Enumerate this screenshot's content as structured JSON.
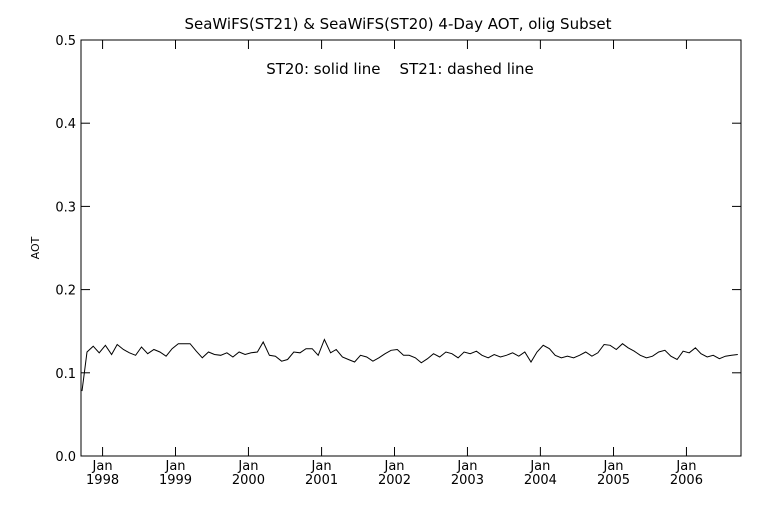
{
  "chart_data": {
    "type": "line",
    "title": "SeaWiFS(ST21) & SeaWiFS(ST20) 4-Day AOT, olig Subset",
    "annotation": "ST20: solid line    ST21: dashed line",
    "xlabel": "",
    "ylabel": "AOT",
    "xlim": [
      "1997-09-15",
      "2006-10-01"
    ],
    "ylim": [
      0.0,
      0.5
    ],
    "y_ticks": [
      "0.0",
      "0.1",
      "0.2",
      "0.3",
      "0.4",
      "0.5"
    ],
    "x_ticks": [
      {
        "month": "Jan",
        "year": "1998",
        "date": "1998-01-01"
      },
      {
        "month": "Jan",
        "year": "1999",
        "date": "1999-01-01"
      },
      {
        "month": "Jan",
        "year": "2000",
        "date": "2000-01-01"
      },
      {
        "month": "Jan",
        "year": "2001",
        "date": "2001-01-01"
      },
      {
        "month": "Jan",
        "year": "2002",
        "date": "2002-01-01"
      },
      {
        "month": "Jan",
        "year": "2003",
        "date": "2003-01-01"
      },
      {
        "month": "Jan",
        "year": "2004",
        "date": "2004-01-01"
      },
      {
        "month": "Jan",
        "year": "2005",
        "date": "2005-01-01"
      },
      {
        "month": "Jan",
        "year": "2006",
        "date": "2006-01-01"
      }
    ],
    "grid": false,
    "series": [
      {
        "name": "ST20",
        "style": "solid",
        "color": "#000000",
        "x": [
          "1997-09-20",
          "1997-10-15",
          "1997-11-15",
          "1997-12-15",
          "1998-01-15",
          "1998-02-15",
          "1998-03-15",
          "1998-04-15",
          "1998-05-15",
          "1998-06-15",
          "1998-07-15",
          "1998-08-15",
          "1998-09-15",
          "1998-10-15",
          "1998-11-15",
          "1998-12-15",
          "1999-01-15",
          "1999-02-15",
          "1999-03-15",
          "1999-04-15",
          "1999-05-15",
          "1999-06-15",
          "1999-07-15",
          "1999-08-15",
          "1999-09-15",
          "1999-10-15",
          "1999-11-15",
          "1999-12-15",
          "2000-01-15",
          "2000-02-15",
          "2000-03-15",
          "2000-04-15",
          "2000-05-15",
          "2000-06-15",
          "2000-07-15",
          "2000-08-15",
          "2000-09-15",
          "2000-10-15",
          "2000-11-15",
          "2000-12-15",
          "2001-01-15",
          "2001-02-15",
          "2001-03-15",
          "2001-04-15",
          "2001-05-15",
          "2001-06-15",
          "2001-07-15",
          "2001-08-15",
          "2001-09-15",
          "2001-10-15",
          "2001-11-15",
          "2001-12-15",
          "2002-01-15",
          "2002-02-15",
          "2002-03-15",
          "2002-04-15",
          "2002-05-15",
          "2002-06-15",
          "2002-07-15",
          "2002-08-15",
          "2002-09-15",
          "2002-10-15",
          "2002-11-15",
          "2002-12-15",
          "2003-01-15",
          "2003-02-15",
          "2003-03-15",
          "2003-04-15",
          "2003-05-15",
          "2003-06-15",
          "2003-07-15",
          "2003-08-15",
          "2003-09-15",
          "2003-10-15",
          "2003-11-15",
          "2003-12-15",
          "2004-01-15",
          "2004-02-15",
          "2004-03-15",
          "2004-04-15",
          "2004-05-15",
          "2004-06-15",
          "2004-07-15",
          "2004-08-15",
          "2004-09-15",
          "2004-10-15",
          "2004-11-15",
          "2004-12-15",
          "2005-01-15",
          "2005-02-15",
          "2005-03-15",
          "2005-04-15",
          "2005-05-15",
          "2005-06-15",
          "2005-07-15",
          "2005-08-15",
          "2005-09-15",
          "2005-10-15",
          "2005-11-15",
          "2005-12-15",
          "2006-01-15",
          "2006-02-15",
          "2006-03-15",
          "2006-04-15",
          "2006-05-15",
          "2006-06-15",
          "2006-07-15",
          "2006-08-15",
          "2006-09-15"
        ],
        "y": [
          0.078,
          0.125,
          0.132,
          0.124,
          0.133,
          0.122,
          0.134,
          0.128,
          0.124,
          0.121,
          0.131,
          0.123,
          0.128,
          0.125,
          0.12,
          0.129,
          0.135,
          0.135,
          0.135,
          0.126,
          0.118,
          0.125,
          0.122,
          0.121,
          0.124,
          0.119,
          0.125,
          0.122,
          0.124,
          0.125,
          0.137,
          0.121,
          0.12,
          0.114,
          0.116,
          0.125,
          0.124,
          0.129,
          0.129,
          0.121,
          0.14,
          0.124,
          0.128,
          0.119,
          0.116,
          0.113,
          0.121,
          0.119,
          0.114,
          0.118,
          0.123,
          0.127,
          0.128,
          0.121,
          0.121,
          0.118,
          0.112,
          0.117,
          0.123,
          0.119,
          0.125,
          0.123,
          0.118,
          0.125,
          0.123,
          0.126,
          0.121,
          0.118,
          0.122,
          0.119,
          0.121,
          0.124,
          0.12,
          0.125,
          0.113,
          0.125,
          0.133,
          0.129,
          0.121,
          0.118,
          0.12,
          0.118,
          0.121,
          0.125,
          0.12,
          0.124,
          0.134,
          0.133,
          0.128,
          0.135,
          0.13,
          0.126,
          0.121,
          0.118,
          0.12,
          0.125,
          0.127,
          0.12,
          0.116,
          0.126,
          0.124,
          0.13,
          0.123,
          0.119,
          0.121,
          0.117,
          0.12,
          0.121,
          0.122
        ]
      }
    ]
  }
}
